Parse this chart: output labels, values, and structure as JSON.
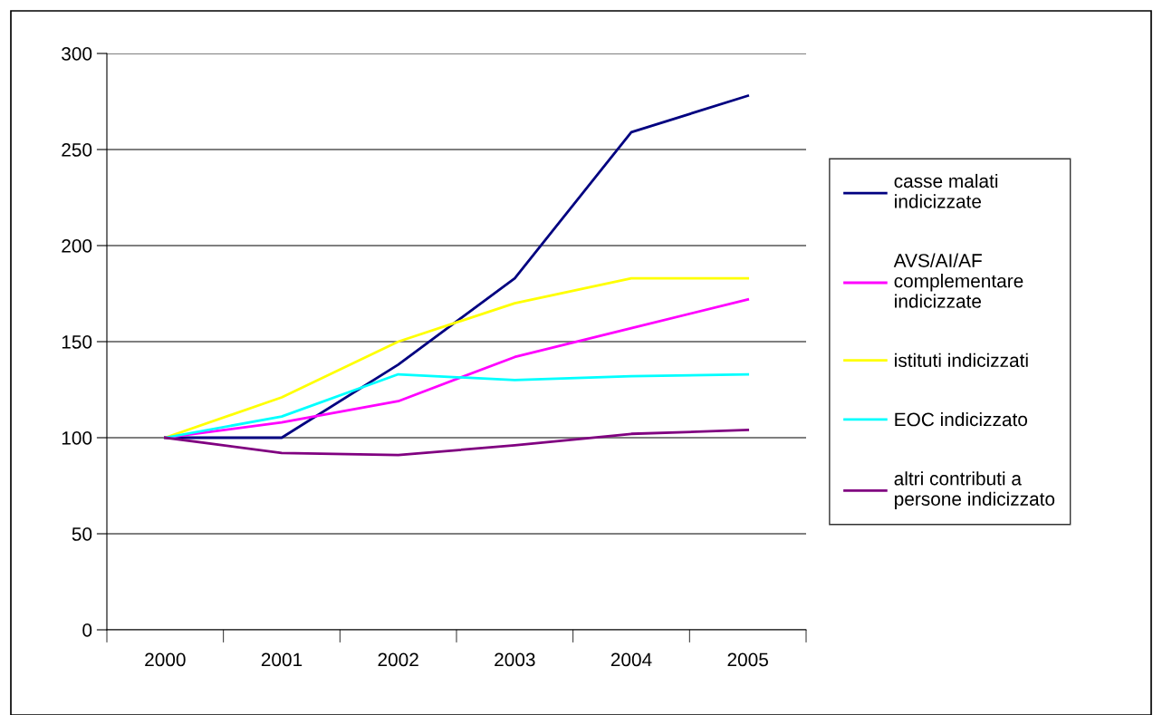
{
  "chart_data": {
    "type": "line",
    "categories": [
      "2000",
      "2001",
      "2002",
      "2003",
      "2004",
      "2005"
    ],
    "series": [
      {
        "name": "casse malati indicizzate",
        "color": "#000080",
        "values": [
          100,
          100,
          138,
          183,
          259,
          278
        ]
      },
      {
        "name": "AVS/AI/AF complementare indicizzate",
        "color": "#ff00ff",
        "values": [
          100,
          108,
          119,
          142,
          157,
          172
        ]
      },
      {
        "name": "istituti indicizzati",
        "color": "#ffff00",
        "values": [
          100,
          121,
          150,
          170,
          183,
          183
        ]
      },
      {
        "name": "EOC indicizzato",
        "color": "#00ffff",
        "values": [
          100,
          111,
          133,
          130,
          132,
          133
        ]
      },
      {
        "name": "altri contributi a persone indicizzato",
        "color": "#800080",
        "values": [
          100,
          92,
          91,
          96,
          102,
          104
        ]
      }
    ],
    "ylim": [
      0,
      300
    ],
    "yticks": [
      0,
      50,
      100,
      150,
      200,
      250,
      300
    ],
    "grid": "y",
    "legend": "right",
    "marker": "none",
    "line_style": "solid"
  }
}
